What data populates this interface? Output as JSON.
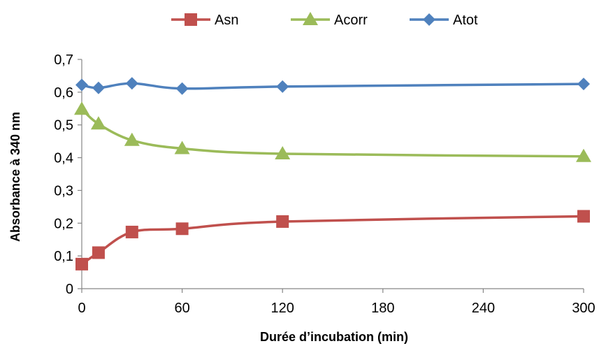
{
  "chart_data": {
    "type": "line",
    "xlabel": "Durée d’incubation  (min)",
    "ylabel": "Absorbance à 340 nm",
    "xlim": [
      0,
      300
    ],
    "ylim": [
      0,
      0.7
    ],
    "xticks": [
      0,
      60,
      120,
      180,
      240,
      300
    ],
    "xtick_labels": [
      "0",
      "60",
      "120",
      "180",
      "240",
      "300"
    ],
    "yticks": [
      0,
      0.1,
      0.2,
      0.3,
      0.4,
      0.5,
      0.6,
      0.7
    ],
    "ytick_labels": [
      "0",
      "0,1",
      "0,2",
      "0,3",
      "0,4",
      "0,5",
      "0,6",
      "0,7"
    ],
    "grid": false,
    "legend_position": "top",
    "smooth": true,
    "series": [
      {
        "name": "Asn",
        "color": "#C0504D",
        "marker": "square",
        "x": [
          0,
          10,
          30,
          60,
          120,
          300
        ],
        "y": [
          0.075,
          0.11,
          0.173,
          0.183,
          0.205,
          0.221
        ]
      },
      {
        "name": "Acorr",
        "color": "#9BBB59",
        "marker": "triangle",
        "x": [
          0,
          10,
          30,
          60,
          120,
          300
        ],
        "y": [
          0.548,
          0.503,
          0.453,
          0.428,
          0.412,
          0.404
        ]
      },
      {
        "name": "Atot",
        "color": "#4F81BD",
        "marker": "diamond",
        "x": [
          0,
          10,
          30,
          60,
          120,
          300
        ],
        "y": [
          0.622,
          0.613,
          0.627,
          0.611,
          0.617,
          0.625
        ]
      }
    ]
  }
}
